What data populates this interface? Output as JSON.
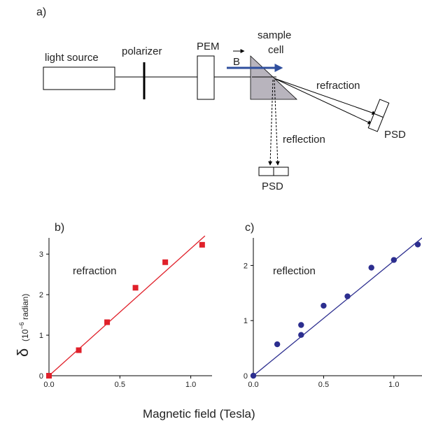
{
  "setup": {
    "panel_label": "a)",
    "light_source": "light source",
    "polarizer": "polarizer",
    "pem": "PEM",
    "sample_line1": "sample",
    "sample_line2": "cell",
    "b_field": "B",
    "refraction": "refraction",
    "reflection": "reflection",
    "psd_right": "PSD",
    "psd_bottom": "PSD",
    "colors": {
      "b_arrow": "#2f4f9e",
      "prism": "#b8b4bd"
    }
  },
  "shared": {
    "xlabel": "Magnetic field (Tesla)",
    "ylabel_symbol": "δ",
    "ylabel_unit_pre": "(10",
    "ylabel_unit_exp": "−6",
    "ylabel_unit_post": " radian)"
  },
  "chart_data": [
    {
      "panel_label": "b)",
      "type": "scatter",
      "annotation": "refraction",
      "marker": "square",
      "color": "#e0202a",
      "xlim": [
        0,
        1.15
      ],
      "ylim": [
        0,
        3.4
      ],
      "xticks": [
        "0.0",
        "0.5",
        "1.0"
      ],
      "xtick_values": [
        0,
        0.5,
        1.0
      ],
      "yticks": [
        "0",
        "1",
        "2",
        "3"
      ],
      "ytick_values": [
        0,
        1,
        2,
        3
      ],
      "points": [
        {
          "x": 0.0,
          "y": 0.0
        },
        {
          "x": 0.21,
          "y": 0.63
        },
        {
          "x": 0.41,
          "y": 1.32
        },
        {
          "x": 0.61,
          "y": 2.17
        },
        {
          "x": 0.82,
          "y": 2.8
        },
        {
          "x": 1.08,
          "y": 3.23
        }
      ],
      "fit_line": {
        "x": [
          0.0,
          1.1
        ],
        "y": [
          0.0,
          3.45
        ]
      }
    },
    {
      "panel_label": "c)",
      "type": "scatter",
      "annotation": "reflection",
      "marker": "circle",
      "color": "#2c2e8f",
      "xlim": [
        0,
        1.2
      ],
      "ylim": [
        0,
        2.5
      ],
      "xticks": [
        "0.0",
        "0.5",
        "1.0"
      ],
      "xtick_values": [
        0,
        0.5,
        1.0
      ],
      "yticks": [
        "0",
        "1",
        "2"
      ],
      "ytick_values": [
        0,
        1,
        2
      ],
      "points": [
        {
          "x": 0.0,
          "y": 0.0
        },
        {
          "x": 0.17,
          "y": 0.57
        },
        {
          "x": 0.34,
          "y": 0.74
        },
        {
          "x": 0.34,
          "y": 0.92
        },
        {
          "x": 0.5,
          "y": 1.27
        },
        {
          "x": 0.67,
          "y": 1.44
        },
        {
          "x": 0.84,
          "y": 1.96
        },
        {
          "x": 1.0,
          "y": 2.1
        },
        {
          "x": 1.17,
          "y": 2.38
        }
      ],
      "fit_line": {
        "x": [
          0.0,
          1.2
        ],
        "y": [
          0.0,
          2.5
        ]
      }
    }
  ]
}
